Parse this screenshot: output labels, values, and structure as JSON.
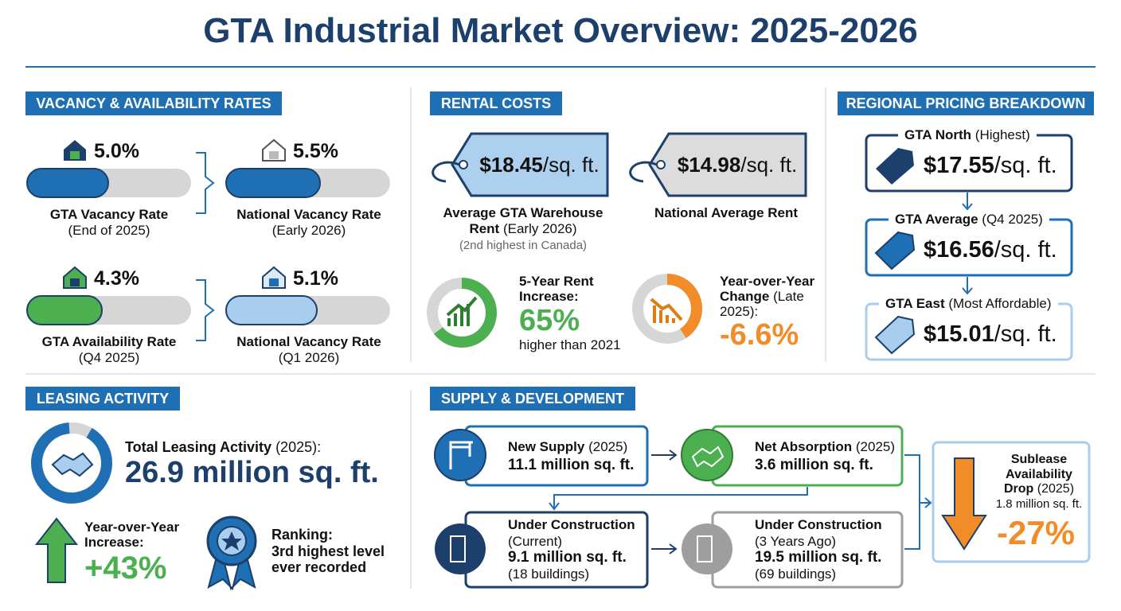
{
  "title": "GTA Industrial Market Overview: 2025-2026",
  "vacancy": {
    "heading": "VACANCY & AVAILABILITY RATES",
    "items": [
      {
        "value": "5.0%",
        "label": "GTA Vacancy Rate",
        "sub": "(End of 2025)"
      },
      {
        "value": "5.5%",
        "label": "National Vacancy Rate",
        "sub": "(Early 2026)"
      },
      {
        "value": "4.3%",
        "label": "GTA Availability Rate",
        "sub": "(Q4 2025)"
      },
      {
        "value": "5.1%",
        "label": "National Vacancy Rate",
        "sub": "(Q1 2026)"
      }
    ]
  },
  "rental": {
    "heading": "RENTAL COSTS",
    "tags": [
      {
        "amount": "$18.45",
        "unit": "/sq. ft.",
        "label": "Average GTA Warehouse Rent",
        "label_sub": "(Early 2026)",
        "note": "(2nd highest in Canada)"
      },
      {
        "amount": "$14.98",
        "unit": "/sq. ft.",
        "label": "National Average Rent"
      }
    ],
    "stats": [
      {
        "label": "5-Year Rent Increase:",
        "value": "65%",
        "note": "higher than 2021"
      },
      {
        "label": "Year-over-Year Change",
        "label_sub": "(Late 2025):",
        "value": "-6.6%"
      }
    ]
  },
  "regional": {
    "heading": "REGIONAL PRICING BREAKDOWN",
    "items": [
      {
        "name": "GTA North",
        "qualifier": "(Highest)",
        "amount": "$17.55",
        "unit": "/sq. ft."
      },
      {
        "name": "GTA Average",
        "qualifier": "(Q4 2025)",
        "amount": "$16.56",
        "unit": "/sq. ft."
      },
      {
        "name": "GTA East",
        "qualifier": "(Most Affordable)",
        "amount": "$15.01",
        "unit": "/sq. ft."
      }
    ]
  },
  "leasing": {
    "heading": "LEASING ACTIVITY",
    "total_label": "Total Leasing Activity",
    "total_period": "(2025):",
    "total_value": "26.9 million sq. ft.",
    "yoy_label": "Year-over-Year Increase:",
    "yoy_value": "+43%",
    "ranking_label": "Ranking:",
    "ranking_value": "3rd highest level ever recorded"
  },
  "supply": {
    "heading": "SUPPLY & DEVELOPMENT",
    "boxes": [
      {
        "title": "New Supply",
        "period": "(2025)",
        "value": "11.1 million sq. ft."
      },
      {
        "title": "Net Absorption",
        "period": "(2025)",
        "value": "3.6 million sq. ft."
      },
      {
        "title": "Under Construction",
        "period": "(Current)",
        "value": "9.1 million sq. ft.",
        "note": "(18 buildings)"
      },
      {
        "title": "Under Construction",
        "period": "(3 Years Ago)",
        "value": "19.5 million sq. ft.",
        "note": "(69 buildings)"
      }
    ],
    "sublease": {
      "title": "Sublease Availability Drop",
      "period": "(2025)",
      "value": "1.8 million sq. ft.",
      "change": "-27%"
    }
  }
}
